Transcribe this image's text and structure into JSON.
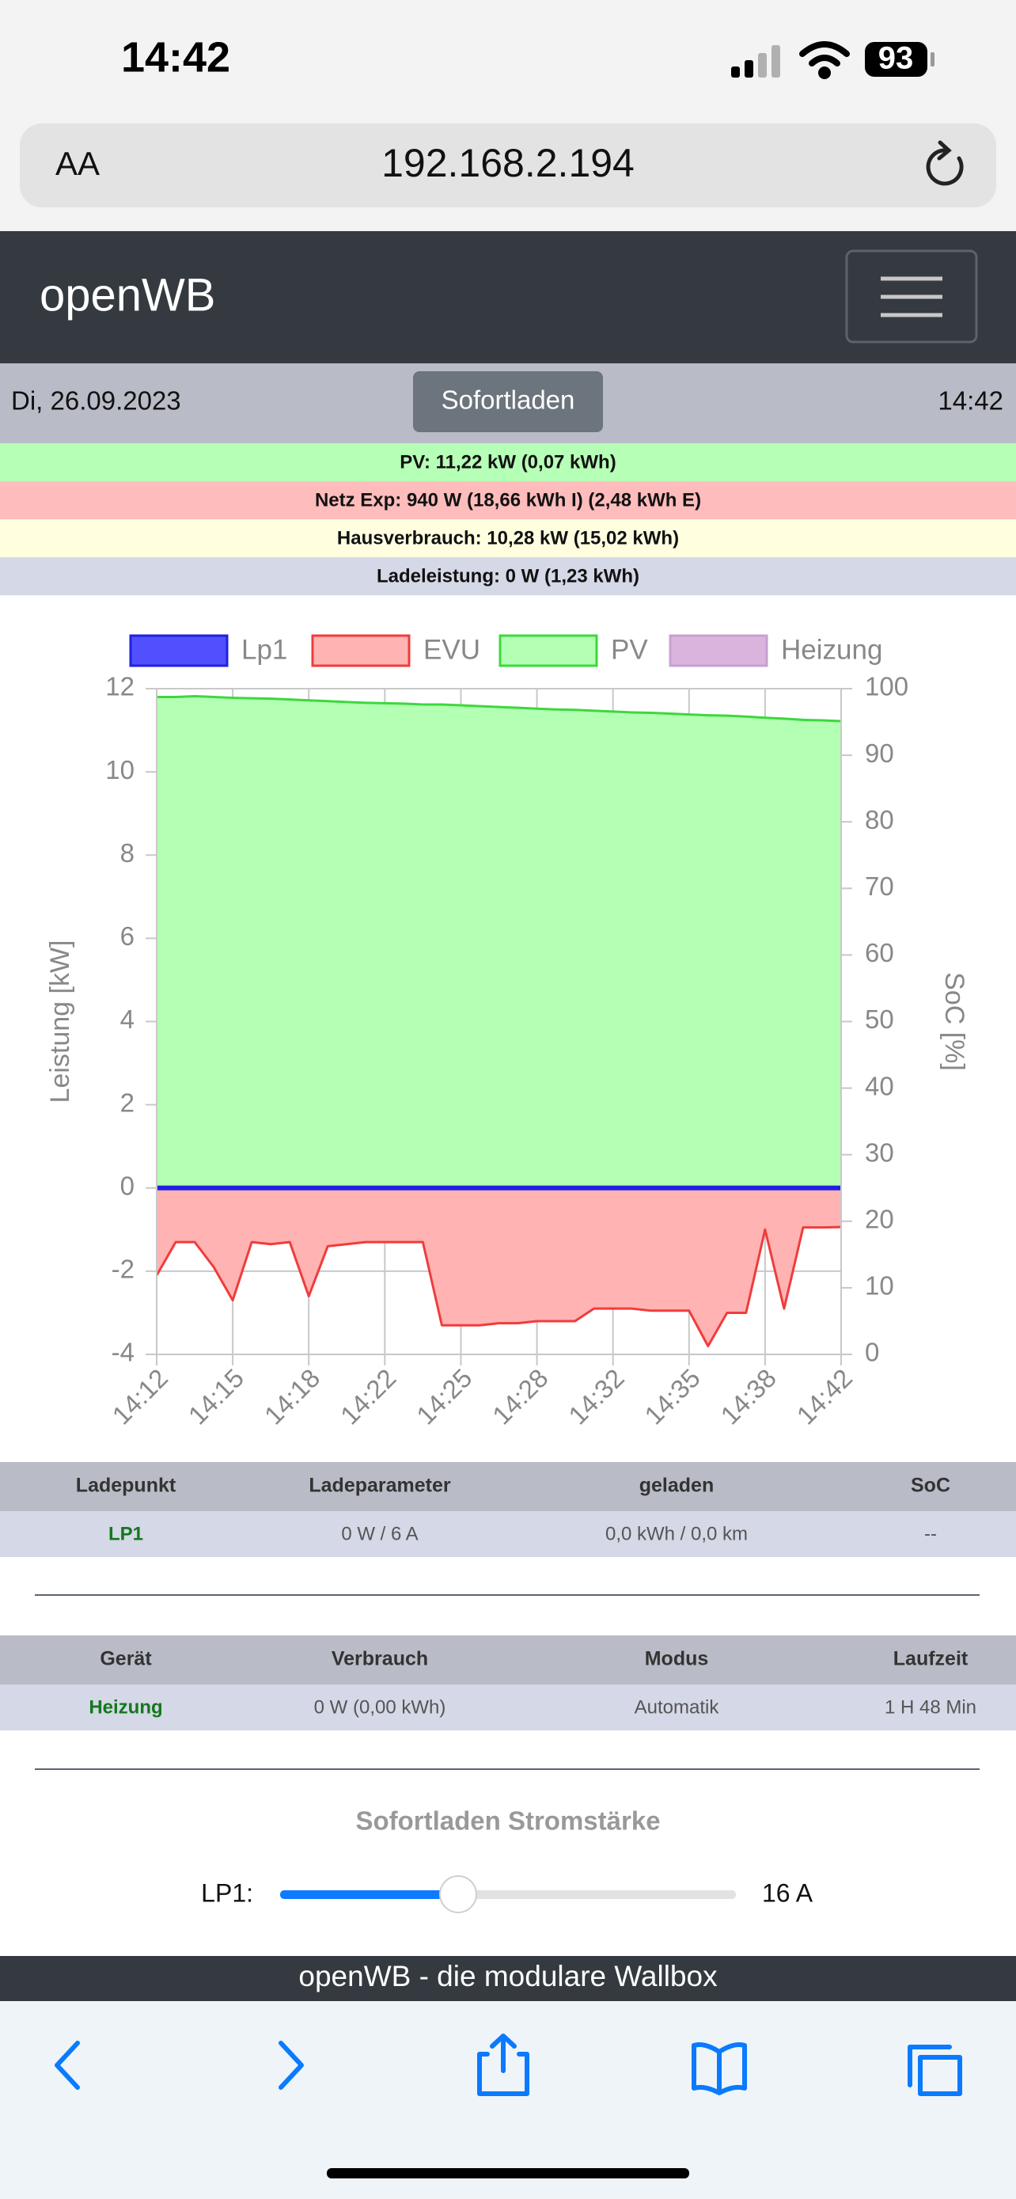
{
  "status_bar": {
    "time": "14:42",
    "battery": "93"
  },
  "browser": {
    "text_size": "AA",
    "url": "192.168.2.194"
  },
  "navbar": {
    "brand": "openWB"
  },
  "date_row": {
    "date": "Di, 26.09.2023",
    "button": "Sofortladen",
    "time": "14:42"
  },
  "info_rows": [
    "PV: 11,22 kW (0,07 kWh)",
    "Netz Exp: 940 W (18,66 kWh I) (2,48 kWh E)",
    "Hausverbrauch: 10,28 kW (15,02 kWh)",
    "Ladeleistung: 0 W (1,23 kWh)"
  ],
  "chart_data": {
    "type": "area",
    "categories": [
      "14:12",
      null,
      null,
      null,
      "14:15",
      null,
      null,
      null,
      "14:18",
      null,
      null,
      null,
      "14:22",
      null,
      null,
      null,
      "14:25",
      null,
      null,
      null,
      "14:28",
      null,
      null,
      null,
      "14:32",
      null,
      null,
      null,
      "14:35",
      null,
      null,
      null,
      "14:38",
      null,
      null,
      null,
      "14:42"
    ],
    "series": [
      {
        "name": "Lp1",
        "color": "#5050ff",
        "line_color": "#2020e0",
        "values": [
          0,
          0,
          0,
          0,
          0,
          0,
          0,
          0,
          0,
          0,
          0,
          0,
          0,
          0,
          0,
          0,
          0,
          0,
          0,
          0,
          0,
          0,
          0,
          0,
          0,
          0,
          0,
          0,
          0,
          0,
          0,
          0,
          0,
          0,
          0,
          0,
          0
        ]
      },
      {
        "name": "EVU",
        "color": "#ffb3b3",
        "line_color": "#f03c3c",
        "values": [
          -2.1,
          -1.3,
          -1.3,
          -1.9,
          -2.7,
          -1.3,
          -1.35,
          -1.3,
          -2.6,
          -1.4,
          -1.35,
          -1.3,
          -1.3,
          -1.3,
          -1.3,
          -3.3,
          -3.3,
          -3.3,
          -3.25,
          -3.25,
          -3.2,
          -3.2,
          -3.2,
          -2.9,
          -2.9,
          -2.9,
          -2.95,
          -2.95,
          -2.95,
          -3.8,
          -3.0,
          -3.0,
          -1.0,
          -2.9,
          -0.95,
          -0.95,
          -0.94
        ]
      },
      {
        "name": "PV",
        "color": "#b3ffb3",
        "line_color": "#3cd83c",
        "values": [
          11.8,
          11.8,
          11.82,
          11.8,
          11.78,
          11.77,
          11.76,
          11.74,
          11.72,
          11.7,
          11.68,
          11.66,
          11.65,
          11.64,
          11.62,
          11.62,
          11.6,
          11.58,
          11.56,
          11.54,
          11.52,
          11.5,
          11.49,
          11.47,
          11.45,
          11.43,
          11.42,
          11.4,
          11.38,
          11.36,
          11.35,
          11.33,
          11.3,
          11.28,
          11.25,
          11.24,
          11.22
        ]
      },
      {
        "name": "Heizung",
        "color": "#dab4dc",
        "line_color": "#c8a0d2",
        "values": [
          null,
          null,
          null,
          null,
          null,
          null,
          null,
          null,
          null,
          null,
          null,
          null,
          null,
          null,
          null,
          null,
          null,
          null,
          null,
          null,
          null,
          null,
          null,
          null,
          null,
          null,
          null,
          null,
          null,
          null,
          null,
          null,
          null,
          null,
          null,
          null,
          null
        ]
      }
    ],
    "y_label": "Leistung [kW]",
    "y2_label": "SoC [%]",
    "ylim": [
      -4,
      12
    ],
    "yticks": [
      -4,
      -2,
      0,
      2,
      4,
      6,
      8,
      10,
      12
    ],
    "y2lim": [
      0,
      100
    ],
    "y2ticks": [
      0,
      10,
      20,
      30,
      40,
      50,
      60,
      70,
      80,
      90,
      100
    ],
    "grid": true
  },
  "charge_table": {
    "header": [
      "Ladepunkt",
      "Ladeparameter",
      "geladen",
      "SoC"
    ],
    "rows": [
      [
        "LP1",
        "0 W / 6 A",
        "0,0 kWh / 0,0 km",
        "--"
      ]
    ]
  },
  "device_table": {
    "header": [
      "Gerät",
      "Verbrauch",
      "Modus",
      "Laufzeit"
    ],
    "rows": [
      [
        "Heizung",
        "0 W (0,00 kWh)",
        "Automatik",
        "1 H 48 Min"
      ]
    ]
  },
  "slider": {
    "title": "Sofortladen Stromstärke",
    "label": "LP1:",
    "value_label": "16 A"
  },
  "footer": {
    "text": "openWB - die modulare Wallbox"
  }
}
